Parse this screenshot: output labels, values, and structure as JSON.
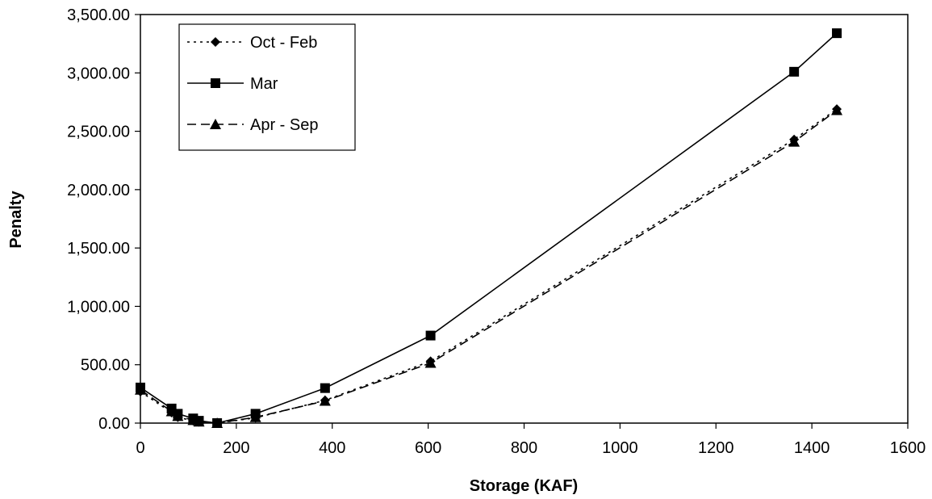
{
  "chart_data": {
    "type": "line",
    "title": "",
    "xlabel": "Storage (KAF)",
    "ylabel": "Penalty",
    "xlim": [
      0,
      1600
    ],
    "ylim": [
      0,
      3500
    ],
    "x_ticks": [
      0,
      200,
      400,
      600,
      800,
      1000,
      1200,
      1400,
      1600
    ],
    "x_tick_labels": [
      "0",
      "200",
      "400",
      "600",
      "800",
      "1000",
      "1200",
      "1400",
      "1600"
    ],
    "y_ticks": [
      0,
      500,
      1000,
      1500,
      2000,
      2500,
      3000,
      3500
    ],
    "y_tick_labels": [
      "0.00",
      "500.00",
      "1,000.00",
      "1,500.00",
      "2,000.00",
      "2,500.00",
      "3,000.00",
      "3,500.00"
    ],
    "grid": false,
    "legend_position": "top-left",
    "series": [
      {
        "name": "Oct - Feb",
        "line_style": "dotted",
        "marker": "diamond",
        "color": "#000000",
        "x": [
          0,
          65,
          78,
          110,
          122,
          160,
          240,
          385,
          605,
          1363,
          1452
        ],
        "y": [
          270,
          90,
          50,
          20,
          10,
          0,
          45,
          195,
          530,
          2430,
          2690
        ]
      },
      {
        "name": "Mar",
        "line_style": "solid",
        "marker": "square",
        "color": "#000000",
        "x": [
          0,
          65,
          78,
          110,
          122,
          160,
          240,
          385,
          605,
          1363,
          1452
        ],
        "y": [
          305,
          125,
          80,
          40,
          20,
          0,
          80,
          300,
          750,
          3010,
          3340
        ]
      },
      {
        "name": "Apr - Sep",
        "line_style": "dashed",
        "marker": "triangle",
        "color": "#000000",
        "x": [
          0,
          65,
          78,
          110,
          122,
          160,
          240,
          385,
          605,
          1363,
          1452
        ],
        "y": [
          285,
          100,
          60,
          25,
          12,
          0,
          50,
          190,
          515,
          2410,
          2680
        ]
      }
    ]
  }
}
